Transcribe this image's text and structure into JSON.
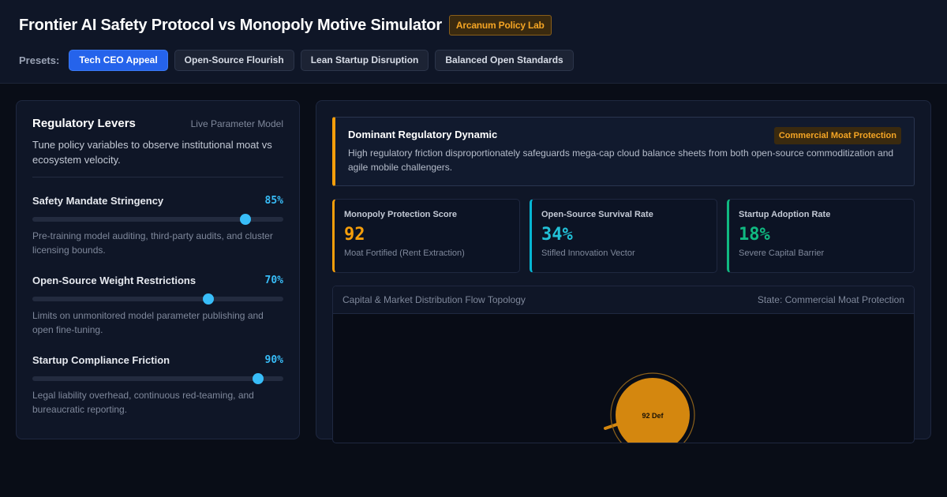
{
  "header": {
    "title": "Frontier AI Safety Protocol vs Monopoly Motive Simulator",
    "badge": "Arcanum Policy Lab",
    "presets_label": "Presets:",
    "presets": [
      {
        "label": "Tech CEO Appeal",
        "active": true
      },
      {
        "label": "Open-Source Flourish",
        "active": false
      },
      {
        "label": "Lean Startup Disruption",
        "active": false
      },
      {
        "label": "Balanced Open Standards",
        "active": false
      }
    ]
  },
  "levers_panel": {
    "title": "Regulatory Levers",
    "subtitle": "Live Parameter Model",
    "description": "Tune policy variables to observe institutional moat vs ecosystem velocity.",
    "levers": [
      {
        "name": "Safety Mandate Stringency",
        "value": 85,
        "value_label": "85%",
        "description": "Pre-training model auditing, third-party audits, and cluster licensing bounds."
      },
      {
        "name": "Open-Source Weight Restrictions",
        "value": 70,
        "value_label": "70%",
        "description": "Limits on unmonitored model parameter publishing and open fine-tuning."
      },
      {
        "name": "Startup Compliance Friction",
        "value": 90,
        "value_label": "90%",
        "description": "Legal liability overhead, continuous red-teaming, and bureaucratic reporting."
      }
    ]
  },
  "dynamic": {
    "title": "Dominant Regulatory Dynamic",
    "badge": "Commercial Moat Protection",
    "description": "High regulatory friction disproportionately safeguards mega-cap cloud balance sheets from both open-source commoditization and agile mobile challengers."
  },
  "metrics": [
    {
      "label": "Monopoly Protection Score",
      "value": "92",
      "sub": "Moat Fortified (Rent Extraction)"
    },
    {
      "label": "Open-Source Survival Rate",
      "value": "34%",
      "sub": "Stifled Innovation Vector"
    },
    {
      "label": "Startup Adoption Rate",
      "value": "18%",
      "sub": "Severe Capital Barrier"
    }
  ],
  "topology": {
    "title": "Capital & Market Distribution Flow Topology",
    "state": "State: Commercial Moat Protection",
    "node_label": "92 Def",
    "node_value": 92,
    "colors": {
      "node": "#d4870f",
      "ring": "#8a5f1a"
    }
  }
}
